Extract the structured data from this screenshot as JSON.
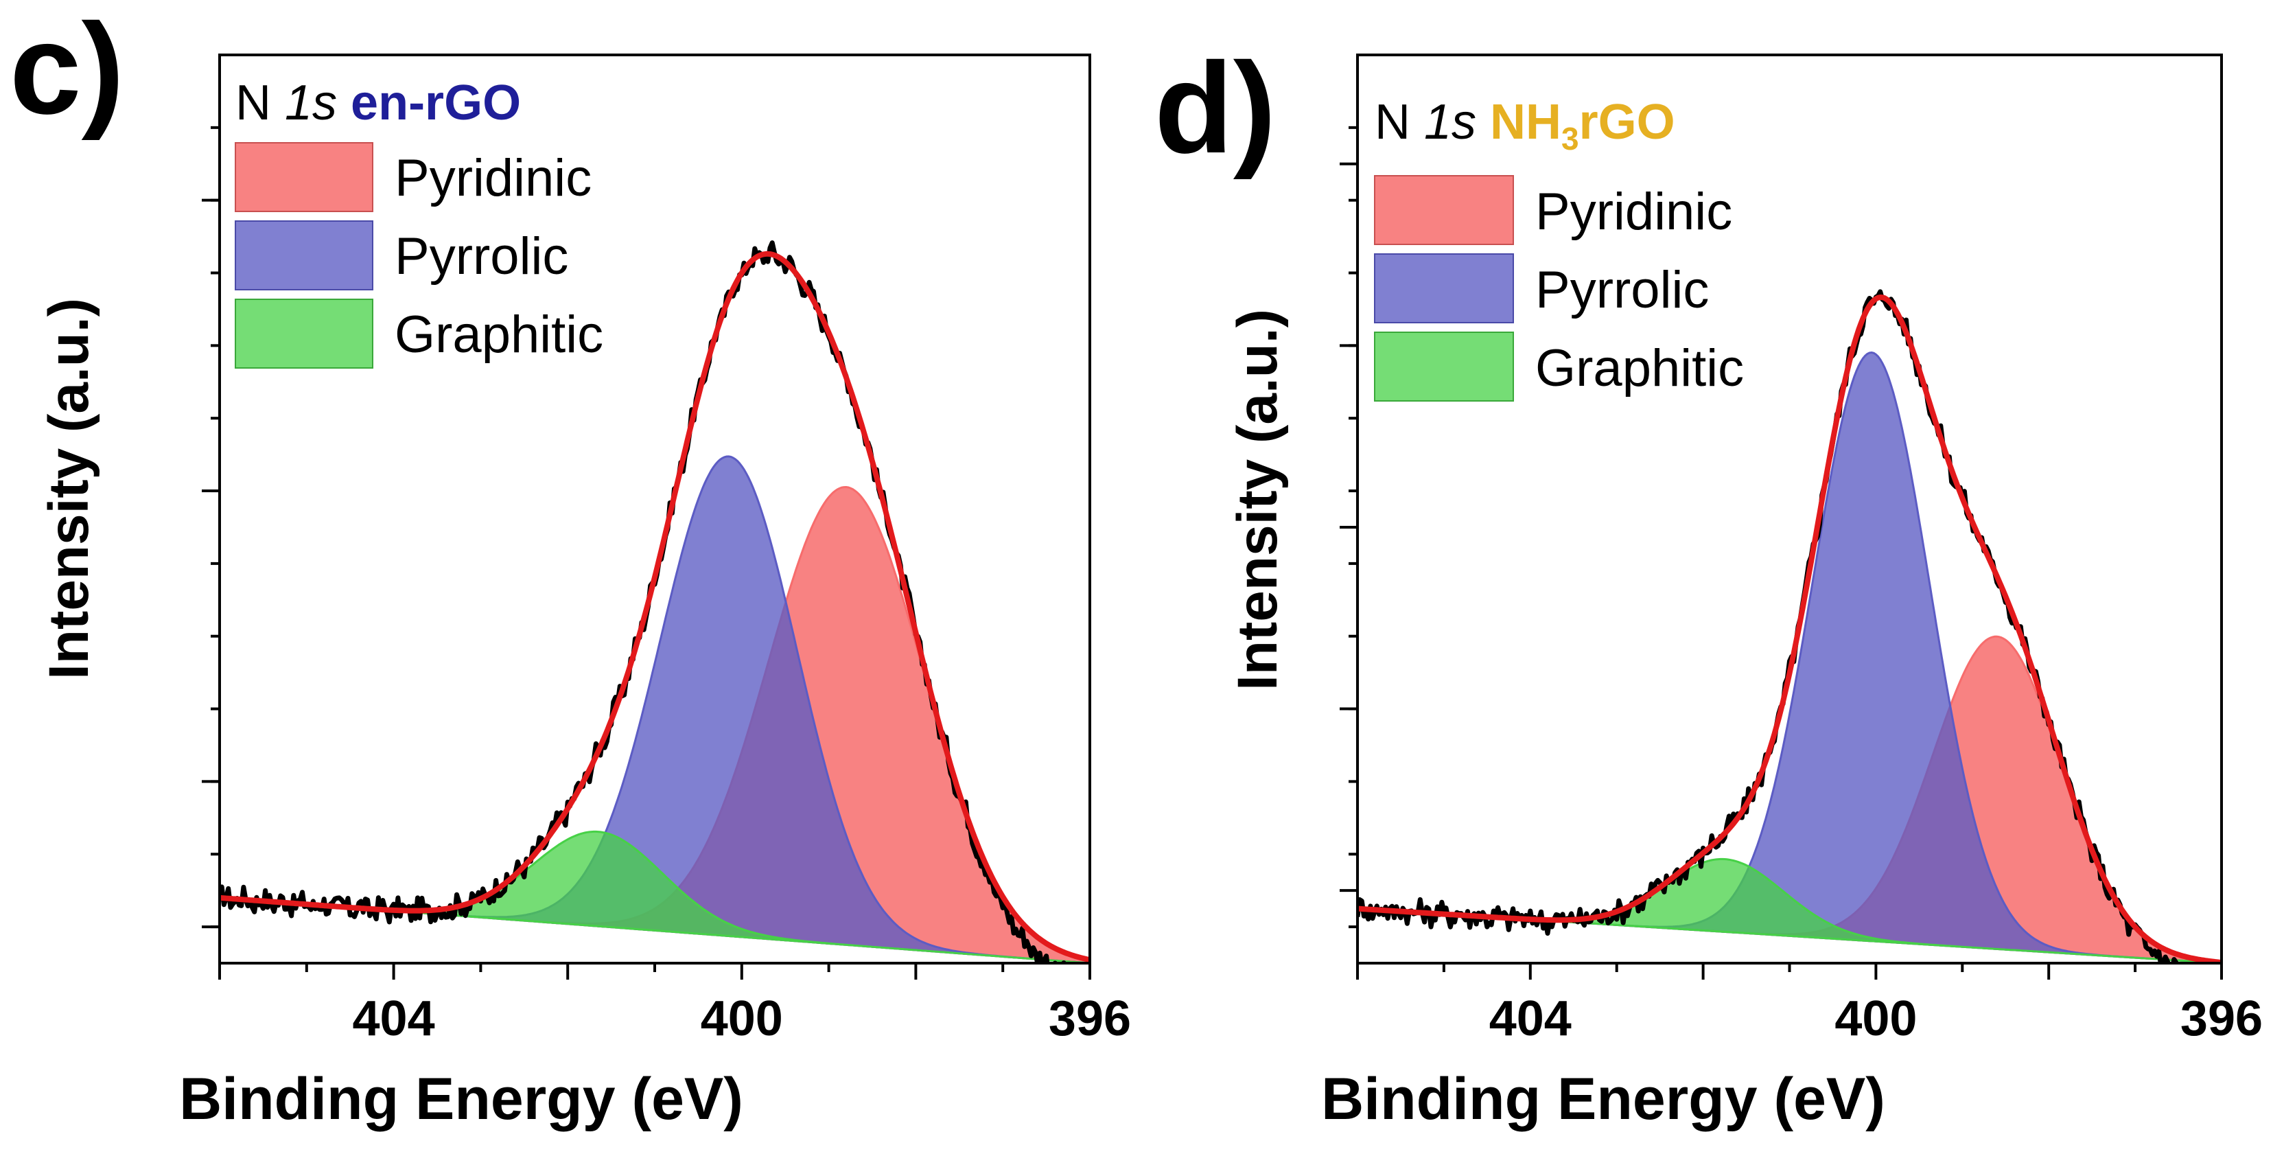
{
  "chart_data": [
    {
      "type": "area",
      "panel_label": "c)",
      "legend_title": {
        "prefix": "N ",
        "orbital": "1s",
        "sample": "en-rGO",
        "sample_color": "#1f1f99"
      },
      "xlabel": "Binding Energy (eV)",
      "ylabel": "Intensity (a.u.)",
      "x_reversed": true,
      "xlim": [
        406.0,
        396.0
      ],
      "ylim": [
        -0.05,
        1.2
      ],
      "x_ticks": [
        {
          "value": 404,
          "label": "404"
        },
        {
          "value": 400,
          "label": "400"
        },
        {
          "value": 396,
          "label": "396"
        }
      ],
      "y_minor_ticks": [
        0,
        0.1,
        0.2,
        0.3,
        0.4,
        0.5,
        0.6,
        0.7,
        0.8,
        0.9,
        1.0,
        1.1
      ],
      "y_major_ticks": [
        0,
        0.2,
        0.6,
        1.0
      ],
      "background": {
        "at_406": 0.04,
        "at_396": -0.05
      },
      "peaks": [
        {
          "name": "Pyridinic",
          "center": 398.8,
          "height": 0.63,
          "fwhm": 2.1,
          "color": "#f76c6c",
          "opacity": 0.85
        },
        {
          "name": "Pyrrolic",
          "center": 400.15,
          "height": 0.66,
          "fwhm": 1.85,
          "color": "#5c5cc4",
          "opacity": 0.78
        },
        {
          "name": "Graphitic",
          "center": 401.65,
          "height": 0.13,
          "fwhm": 1.75,
          "color": "#47d147",
          "opacity": 0.75
        }
      ],
      "fit_color": "#e31a1c",
      "data_color": "#000000",
      "raw_tail_drop": 0.03
    },
    {
      "type": "area",
      "panel_label": "d)",
      "legend_title": {
        "prefix": "N ",
        "orbital": "1s",
        "sample": "NH",
        "sample_sub": "3",
        "sample_suffix": "rGO",
        "sample_color": "#e6b022"
      },
      "xlabel": "Binding Energy (eV)",
      "ylabel": "Intensity (a.u.)",
      "x_reversed": true,
      "xlim": [
        406.0,
        396.0
      ],
      "ylim": [
        -0.05,
        1.2
      ],
      "x_ticks": [
        {
          "value": 404,
          "label": "404"
        },
        {
          "value": 400,
          "label": "400"
        },
        {
          "value": 396,
          "label": "396"
        }
      ],
      "y_minor_ticks": [
        0,
        0.1,
        0.2,
        0.3,
        0.4,
        0.5,
        0.6,
        0.7,
        0.8,
        0.9,
        1.0,
        1.1
      ],
      "y_major_ticks": [
        0.05,
        0.3,
        0.55,
        0.8,
        1.05
      ],
      "background": {
        "at_406": 0.025,
        "at_396": -0.05
      },
      "peaks": [
        {
          "name": "Pyridinic",
          "center": 398.6,
          "height": 0.43,
          "fwhm": 1.75,
          "color": "#f76c6c",
          "opacity": 0.85
        },
        {
          "name": "Pyrrolic",
          "center": 400.05,
          "height": 0.81,
          "fwhm": 1.6,
          "color": "#5c5cc4",
          "opacity": 0.78
        },
        {
          "name": "Graphitic",
          "center": 401.75,
          "height": 0.1,
          "fwhm": 1.6,
          "color": "#47d147",
          "opacity": 0.75
        }
      ],
      "fit_color": "#e31a1c",
      "data_color": "#000000",
      "raw_tail_drop": 0.02
    }
  ]
}
